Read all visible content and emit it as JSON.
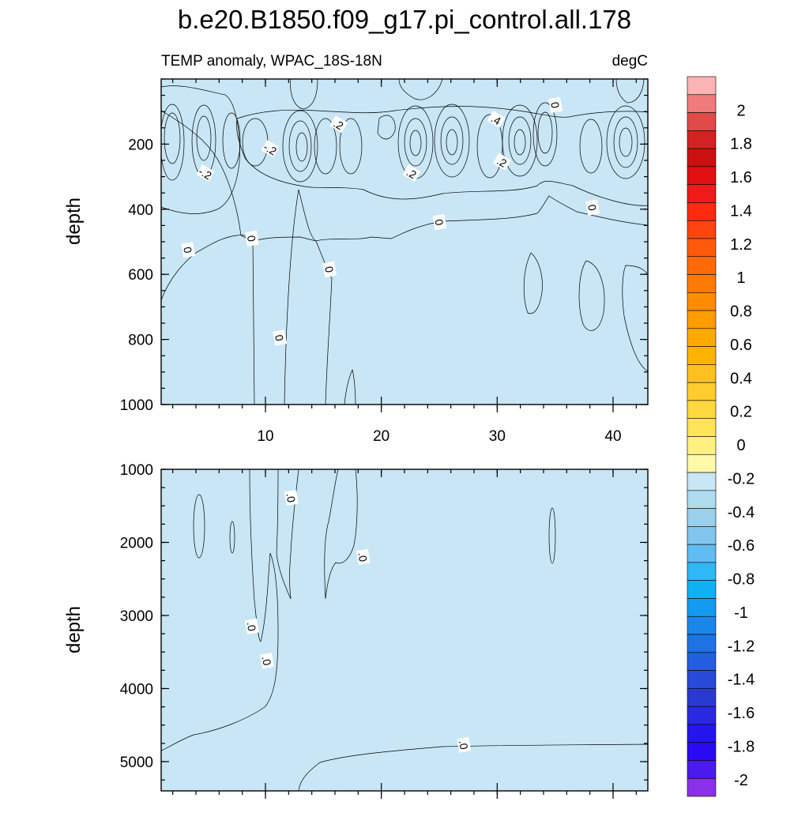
{
  "chart_data": {
    "type": "heatmap",
    "title": "b.e20.B1850.f09_g17.pi_control.all.178",
    "subtitle_left": "TEMP anomaly, WPAC_18S-18N",
    "subtitle_right": "degC",
    "xlabel": "",
    "ylabel": "depth",
    "x_range": [
      1,
      43
    ],
    "x_ticks": [
      10,
      20,
      30,
      40
    ],
    "x_tick_labels": [
      "10",
      "20",
      "30",
      "40"
    ],
    "panels": [
      {
        "name": "upper",
        "ylabel": "depth",
        "y_range": [
          0,
          1000
        ],
        "y_ticks": [
          200,
          400,
          600,
          800,
          1000
        ],
        "y_tick_labels": [
          "200",
          "400",
          "600",
          "800",
          "1000"
        ],
        "contour_labels": [
          {
            "text": "-.2",
            "x": 4.8,
            "depth": 290
          },
          {
            "text": "-.2",
            "x": 10.4,
            "depth": 215
          },
          {
            "text": ".2",
            "x": 16.3,
            "depth": 140
          },
          {
            "text": ".2",
            "x": 22.6,
            "depth": 290
          },
          {
            "text": ".4",
            "x": 29.9,
            "depth": 125
          },
          {
            "text": ".2",
            "x": 30.4,
            "depth": 255
          },
          {
            "text": "0",
            "x": 35.0,
            "depth": 80
          },
          {
            "text": "0",
            "x": 3.3,
            "depth": 525
          },
          {
            "text": "0",
            "x": 8.8,
            "depth": 490
          },
          {
            "text": "0",
            "x": 15.5,
            "depth": 585
          },
          {
            "text": "0",
            "x": 11.2,
            "depth": 795
          },
          {
            "text": "0",
            "x": 25.0,
            "depth": 440
          },
          {
            "text": "0",
            "x": 38.2,
            "depth": 395
          }
        ]
      },
      {
        "name": "lower",
        "ylabel": "depth",
        "y_range": [
          1000,
          5400
        ],
        "y_ticks": [
          1000,
          2000,
          3000,
          4000,
          5000
        ],
        "y_tick_labels": [
          "1000",
          "2000",
          "3000",
          "4000",
          "5000"
        ],
        "contour_labels": [
          {
            "text": ".0",
            "x": 12.2,
            "depth": 1390
          },
          {
            "text": ".0",
            "x": 18.4,
            "depth": 2200
          },
          {
            "text": ".0",
            "x": 8.8,
            "depth": 3150
          },
          {
            "text": ".0",
            "x": 10.1,
            "depth": 3620
          },
          {
            "text": ".0",
            "x": 27.1,
            "depth": 4770
          }
        ]
      }
    ],
    "colorbar": {
      "min": -2.1,
      "max": 2.2,
      "labels": [
        "2",
        "1.8",
        "1.6",
        "1.4",
        "1.2",
        "1",
        "0.8",
        "0.6",
        "0.4",
        "0.2",
        "0",
        "-0.2",
        "-0.4",
        "-0.6",
        "-0.8",
        "-1",
        "-1.2",
        "-1.4",
        "-1.6",
        "-1.8",
        "-2"
      ],
      "label_values": [
        2,
        1.8,
        1.6,
        1.4,
        1.2,
        1,
        0.8,
        0.6,
        0.4,
        0.2,
        0,
        -0.2,
        -0.4,
        -0.6,
        -0.8,
        -1,
        -1.2,
        -1.4,
        -1.6,
        -1.8,
        -2
      ],
      "colors": [
        "#fbb4b4",
        "#f07b7b",
        "#e04a4a",
        "#d42121",
        "#cc0f0f",
        "#e01010",
        "#f01a1a",
        "#ff2a10",
        "#ff4410",
        "#ff5a0c",
        "#ff6a08",
        "#ff7a04",
        "#ff8c00",
        "#ff9c00",
        "#ffaa00",
        "#ffb300",
        "#ffc020",
        "#ffcc30",
        "#ffd840",
        "#ffe45a",
        "#fff080",
        "#fffaa8",
        "#c8e6f5",
        "#b0dcf0",
        "#9ad0ec",
        "#80c6ef",
        "#60bcf3",
        "#2eb8f5",
        "#10b0f5",
        "#149af0",
        "#1a86ea",
        "#1e72e4",
        "#225ede",
        "#284ad6",
        "#2a3ad0",
        "#2a28e0",
        "#2414ee",
        "#2a0af5",
        "#4a1aee",
        "#8a30ea"
      ]
    },
    "colors": {
      "light_yellow": "#fffaa8",
      "light_blue": "#c8e6f5",
      "mid_blue": "#a9d8f0",
      "cyan_blue": "#5cbcef",
      "deep_blue": "#1aa7ec",
      "yellow": "#ffe066",
      "gold": "#ffc000",
      "orange": "#ff9800",
      "dark_orange": "#ff7a00",
      "red": "#e8541a"
    }
  }
}
